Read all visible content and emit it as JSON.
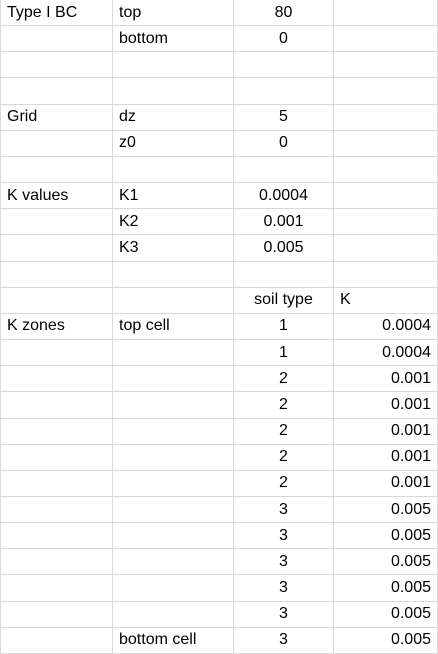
{
  "rows": [
    [
      "Type I BC",
      "top",
      "80",
      ""
    ],
    [
      "",
      "bottom",
      "0",
      ""
    ],
    [
      "",
      "",
      "",
      ""
    ],
    [
      "",
      "",
      "",
      ""
    ],
    [
      "Grid",
      "dz",
      "5",
      ""
    ],
    [
      "",
      "z0",
      "0",
      ""
    ],
    [
      "",
      "",
      "",
      ""
    ],
    [
      "K values",
      "K1",
      "0.0004",
      ""
    ],
    [
      "",
      "K2",
      "0.001",
      ""
    ],
    [
      "",
      "K3",
      "0.005",
      ""
    ],
    [
      "",
      "",
      "",
      ""
    ],
    [
      "",
      "",
      "soil type",
      "K"
    ],
    [
      "K zones",
      "top cell",
      "1",
      "0.0004"
    ],
    [
      "",
      "",
      "1",
      "0.0004"
    ],
    [
      "",
      "",
      "2",
      "0.001"
    ],
    [
      "",
      "",
      "2",
      "0.001"
    ],
    [
      "",
      "",
      "2",
      "0.001"
    ],
    [
      "",
      "",
      "2",
      "0.001"
    ],
    [
      "",
      "",
      "2",
      "0.001"
    ],
    [
      "",
      "",
      "3",
      "0.005"
    ],
    [
      "",
      "",
      "3",
      "0.005"
    ],
    [
      "",
      "",
      "3",
      "0.005"
    ],
    [
      "",
      "",
      "3",
      "0.005"
    ],
    [
      "",
      "",
      "3",
      "0.005"
    ],
    [
      "",
      "bottom cell",
      "3",
      "0.005"
    ]
  ]
}
